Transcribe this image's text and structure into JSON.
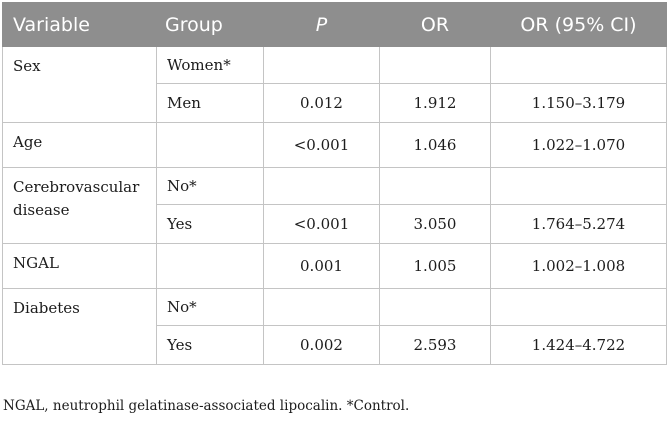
{
  "table": {
    "headers": [
      "Variable",
      "Group",
      "P",
      "OR",
      "OR (95% CI)"
    ],
    "rows": [
      {
        "variable": "Sex",
        "groups": [
          {
            "group": "Women*",
            "p": "",
            "or": "",
            "ci": ""
          },
          {
            "group": "Men",
            "p": "0.012",
            "or": "1.912",
            "ci": "1.150–3.179"
          }
        ]
      },
      {
        "variable": "Age",
        "groups": [
          {
            "group": "",
            "p": "<0.001",
            "or": "1.046",
            "ci": "1.022–1.070"
          }
        ]
      },
      {
        "variable": "Cerebrovascular disease",
        "groups": [
          {
            "group": "No*",
            "p": "",
            "or": "",
            "ci": ""
          },
          {
            "group": "Yes",
            "p": "<0.001",
            "or": "3.050",
            "ci": "1.764–5.274"
          }
        ]
      },
      {
        "variable": "NGAL",
        "groups": [
          {
            "group": "",
            "p": "0.001",
            "or": "1.005",
            "ci": "1.002–1.008"
          }
        ]
      },
      {
        "variable": "Diabetes",
        "groups": [
          {
            "group": "No*",
            "p": "",
            "or": "",
            "ci": ""
          },
          {
            "group": "Yes",
            "p": "0.002",
            "or": "2.593",
            "ci": "1.424–4.722"
          }
        ]
      }
    ]
  },
  "footnote": "NGAL, neutrophil gelatinase-associated lipocalin. *Control.",
  "colors": {
    "header_bg": "#8e8e8e",
    "header_text": "#ffffff",
    "border": "#c4c4c4",
    "text": "#1c1c1c"
  }
}
